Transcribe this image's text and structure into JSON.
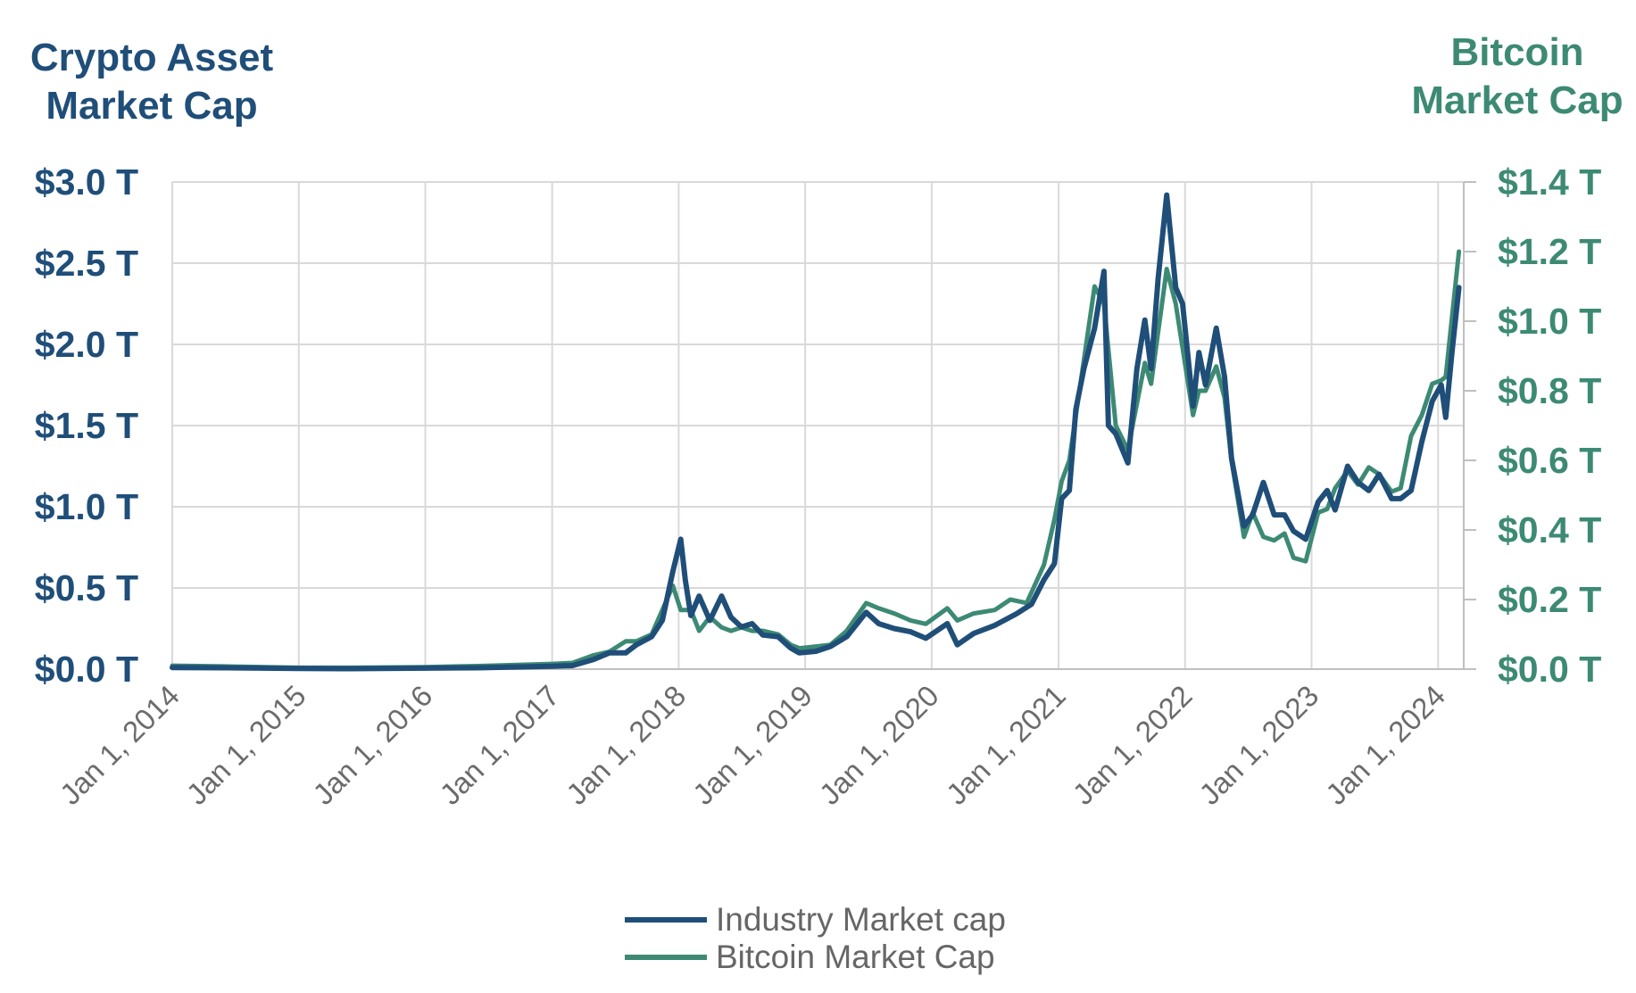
{
  "chart_data": {
    "type": "line",
    "title_left": "Crypto Asset Market Cap",
    "title_left_lines": [
      "Crypto Asset",
      "Market Cap"
    ],
    "title_right": "Bitcoin Market Cap",
    "title_right_lines": [
      "Bitcoin",
      "Market Cap"
    ],
    "x_ticks": [
      "Jan 1, 2014",
      "Jan 1, 2015",
      "Jan 1, 2016",
      "Jan 1, 2017",
      "Jan 1, 2018",
      "Jan 1, 2019",
      "Jan 1, 2020",
      "Jan 1, 2021",
      "Jan 1, 2022",
      "Jan 1, 2023",
      "Jan 1, 2024"
    ],
    "xlim": [
      "2014-01-01",
      "2024-03-15"
    ],
    "y_left_ticks": [
      "$0.0 T",
      "$0.5 T",
      "$1.0 T",
      "$1.5 T",
      "$2.0 T",
      "$2.5 T",
      "$3.0 T"
    ],
    "y_left_lim": [
      0,
      3.0
    ],
    "y_right_ticks": [
      "$0.0 T",
      "$0.2 T",
      "$0.4 T",
      "$0.6 T",
      "$0.8 T",
      "$1.0 T",
      "$1.2 T",
      "$1.4 T"
    ],
    "y_right_lim": [
      0,
      1.4
    ],
    "grid": true,
    "legend_position": "bottom",
    "series": [
      {
        "name": "Industry Market cap",
        "axis": "left",
        "color": "#1f4e79",
        "points": [
          [
            "2014-01-01",
            0.01
          ],
          [
            "2014-06-01",
            0.008
          ],
          [
            "2015-01-01",
            0.004
          ],
          [
            "2015-06-01",
            0.003
          ],
          [
            "2016-01-01",
            0.006
          ],
          [
            "2016-06-01",
            0.008
          ],
          [
            "2017-01-01",
            0.018
          ],
          [
            "2017-03-01",
            0.022
          ],
          [
            "2017-05-01",
            0.06
          ],
          [
            "2017-06-15",
            0.1
          ],
          [
            "2017-08-01",
            0.1
          ],
          [
            "2017-09-01",
            0.15
          ],
          [
            "2017-10-15",
            0.2
          ],
          [
            "2017-11-15",
            0.3
          ],
          [
            "2017-12-15",
            0.6
          ],
          [
            "2018-01-07",
            0.8
          ],
          [
            "2018-01-20",
            0.55
          ],
          [
            "2018-02-05",
            0.33
          ],
          [
            "2018-03-01",
            0.45
          ],
          [
            "2018-04-01",
            0.3
          ],
          [
            "2018-05-05",
            0.45
          ],
          [
            "2018-06-01",
            0.32
          ],
          [
            "2018-07-01",
            0.26
          ],
          [
            "2018-08-01",
            0.28
          ],
          [
            "2018-09-01",
            0.21
          ],
          [
            "2018-10-15",
            0.2
          ],
          [
            "2018-11-20",
            0.13
          ],
          [
            "2018-12-15",
            0.1
          ],
          [
            "2019-02-01",
            0.11
          ],
          [
            "2019-03-15",
            0.14
          ],
          [
            "2019-05-01",
            0.2
          ],
          [
            "2019-06-26",
            0.35
          ],
          [
            "2019-08-01",
            0.28
          ],
          [
            "2019-09-15",
            0.25
          ],
          [
            "2019-11-01",
            0.23
          ],
          [
            "2019-12-15",
            0.19
          ],
          [
            "2020-02-15",
            0.28
          ],
          [
            "2020-03-15",
            0.15
          ],
          [
            "2020-05-01",
            0.22
          ],
          [
            "2020-07-01",
            0.27
          ],
          [
            "2020-09-01",
            0.34
          ],
          [
            "2020-10-15",
            0.4
          ],
          [
            "2020-11-20",
            0.55
          ],
          [
            "2020-12-20",
            0.65
          ],
          [
            "2021-01-10",
            1.05
          ],
          [
            "2021-02-01",
            1.1
          ],
          [
            "2021-02-20",
            1.6
          ],
          [
            "2021-03-15",
            1.85
          ],
          [
            "2021-04-15",
            2.1
          ],
          [
            "2021-05-12",
            2.45
          ],
          [
            "2021-05-25",
            1.5
          ],
          [
            "2021-06-15",
            1.45
          ],
          [
            "2021-07-20",
            1.27
          ],
          [
            "2021-08-15",
            1.85
          ],
          [
            "2021-09-07",
            2.15
          ],
          [
            "2021-09-25",
            1.85
          ],
          [
            "2021-10-15",
            2.4
          ],
          [
            "2021-11-09",
            2.92
          ],
          [
            "2021-12-05",
            2.35
          ],
          [
            "2021-12-25",
            2.25
          ],
          [
            "2022-01-24",
            1.62
          ],
          [
            "2022-02-10",
            1.95
          ],
          [
            "2022-03-01",
            1.75
          ],
          [
            "2022-04-01",
            2.1
          ],
          [
            "2022-04-25",
            1.8
          ],
          [
            "2022-05-15",
            1.3
          ],
          [
            "2022-06-20",
            0.88
          ],
          [
            "2022-07-15",
            0.95
          ],
          [
            "2022-08-15",
            1.15
          ],
          [
            "2022-09-15",
            0.95
          ],
          [
            "2022-10-15",
            0.95
          ],
          [
            "2022-11-10",
            0.85
          ],
          [
            "2022-12-15",
            0.8
          ],
          [
            "2023-01-20",
            1.03
          ],
          [
            "2023-02-15",
            1.1
          ],
          [
            "2023-03-10",
            0.98
          ],
          [
            "2023-04-15",
            1.25
          ],
          [
            "2023-05-15",
            1.15
          ],
          [
            "2023-06-15",
            1.1
          ],
          [
            "2023-07-15",
            1.2
          ],
          [
            "2023-08-20",
            1.05
          ],
          [
            "2023-09-15",
            1.05
          ],
          [
            "2023-10-15",
            1.1
          ],
          [
            "2023-11-15",
            1.4
          ],
          [
            "2023-12-15",
            1.65
          ],
          [
            "2024-01-10",
            1.75
          ],
          [
            "2024-01-23",
            1.55
          ],
          [
            "2024-02-10",
            1.95
          ],
          [
            "2024-03-01",
            2.35
          ]
        ]
      },
      {
        "name": "Bitcoin Market Cap",
        "axis": "right",
        "color": "#3d8a74",
        "points": [
          [
            "2014-01-01",
            0.01
          ],
          [
            "2014-06-01",
            0.008
          ],
          [
            "2015-01-01",
            0.004
          ],
          [
            "2015-06-01",
            0.004
          ],
          [
            "2016-01-01",
            0.006
          ],
          [
            "2016-06-01",
            0.009
          ],
          [
            "2017-01-01",
            0.015
          ],
          [
            "2017-03-01",
            0.018
          ],
          [
            "2017-05-01",
            0.04
          ],
          [
            "2017-06-15",
            0.05
          ],
          [
            "2017-08-01",
            0.08
          ],
          [
            "2017-09-01",
            0.08
          ],
          [
            "2017-10-15",
            0.1
          ],
          [
            "2017-11-15",
            0.17
          ],
          [
            "2017-12-15",
            0.24
          ],
          [
            "2018-01-07",
            0.17
          ],
          [
            "2018-02-05",
            0.17
          ],
          [
            "2018-03-01",
            0.11
          ],
          [
            "2018-04-01",
            0.15
          ],
          [
            "2018-05-05",
            0.12
          ],
          [
            "2018-06-01",
            0.11
          ],
          [
            "2018-07-01",
            0.12
          ],
          [
            "2018-08-01",
            0.11
          ],
          [
            "2018-09-01",
            0.11
          ],
          [
            "2018-10-15",
            0.1
          ],
          [
            "2018-11-20",
            0.07
          ],
          [
            "2018-12-15",
            0.06
          ],
          [
            "2019-02-01",
            0.065
          ],
          [
            "2019-03-15",
            0.07
          ],
          [
            "2019-05-01",
            0.11
          ],
          [
            "2019-06-26",
            0.19
          ],
          [
            "2019-08-01",
            0.175
          ],
          [
            "2019-09-15",
            0.16
          ],
          [
            "2019-11-01",
            0.14
          ],
          [
            "2019-12-15",
            0.13
          ],
          [
            "2020-02-15",
            0.175
          ],
          [
            "2020-03-15",
            0.14
          ],
          [
            "2020-05-01",
            0.16
          ],
          [
            "2020-07-01",
            0.17
          ],
          [
            "2020-08-15",
            0.2
          ],
          [
            "2020-10-01",
            0.19
          ],
          [
            "2020-11-20",
            0.3
          ],
          [
            "2020-12-20",
            0.43
          ],
          [
            "2021-01-10",
            0.54
          ],
          [
            "2021-02-01",
            0.6
          ],
          [
            "2021-04-15",
            1.1
          ],
          [
            "2021-05-12",
            1.05
          ],
          [
            "2021-06-15",
            0.7
          ],
          [
            "2021-07-20",
            0.63
          ],
          [
            "2021-09-07",
            0.88
          ],
          [
            "2021-09-25",
            0.82
          ],
          [
            "2021-11-09",
            1.15
          ],
          [
            "2021-12-05",
            1.05
          ],
          [
            "2022-01-24",
            0.73
          ],
          [
            "2022-02-10",
            0.8
          ],
          [
            "2022-03-01",
            0.8
          ],
          [
            "2022-04-01",
            0.87
          ],
          [
            "2022-04-25",
            0.78
          ],
          [
            "2022-05-15",
            0.6
          ],
          [
            "2022-06-20",
            0.38
          ],
          [
            "2022-07-15",
            0.45
          ],
          [
            "2022-08-15",
            0.38
          ],
          [
            "2022-09-15",
            0.37
          ],
          [
            "2022-10-15",
            0.39
          ],
          [
            "2022-11-10",
            0.32
          ],
          [
            "2022-12-15",
            0.31
          ],
          [
            "2023-01-20",
            0.45
          ],
          [
            "2023-02-15",
            0.46
          ],
          [
            "2023-03-10",
            0.52
          ],
          [
            "2023-04-15",
            0.57
          ],
          [
            "2023-05-15",
            0.53
          ],
          [
            "2023-06-15",
            0.58
          ],
          [
            "2023-07-15",
            0.56
          ],
          [
            "2023-08-20",
            0.51
          ],
          [
            "2023-09-15",
            0.52
          ],
          [
            "2023-10-15",
            0.67
          ],
          [
            "2023-11-15",
            0.73
          ],
          [
            "2023-12-15",
            0.82
          ],
          [
            "2024-01-10",
            0.83
          ],
          [
            "2024-01-23",
            0.84
          ],
          [
            "2024-03-01",
            1.2
          ]
        ]
      }
    ]
  }
}
